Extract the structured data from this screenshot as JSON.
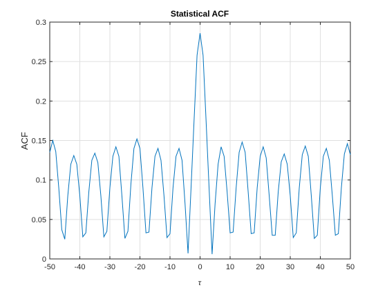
{
  "chart_data": {
    "type": "line",
    "title": "Statistical ACF",
    "xlabel": "τ",
    "ylabel": "ACF",
    "x": [
      -50,
      -49,
      -48,
      -47,
      -46,
      -45,
      -44,
      -43,
      -42,
      -41,
      -40,
      -39,
      -38,
      -37,
      -36,
      -35,
      -34,
      -33,
      -32,
      -31,
      -30,
      -29,
      -28,
      -27,
      -26,
      -25,
      -24,
      -23,
      -22,
      -21,
      -20,
      -19,
      -18,
      -17,
      -16,
      -15,
      -14,
      -13,
      -12,
      -11,
      -10,
      -9,
      -8,
      -7,
      -6,
      -5,
      -4,
      -3,
      -2,
      -1,
      0,
      1,
      2,
      3,
      4,
      5,
      6,
      7,
      8,
      9,
      10,
      11,
      12,
      13,
      14,
      15,
      16,
      17,
      18,
      19,
      20,
      21,
      22,
      23,
      24,
      25,
      26,
      27,
      28,
      29,
      30,
      31,
      32,
      33,
      34,
      35,
      36,
      37,
      38,
      39,
      40,
      41,
      42,
      43,
      44,
      45,
      46,
      47,
      48,
      49,
      50
    ],
    "series": [
      {
        "name": "ACF",
        "color": "#0072bd",
        "values": [
          0.135,
          0.15,
          0.136,
          0.09,
          0.037,
          0.025,
          0.08,
          0.12,
          0.131,
          0.12,
          0.08,
          0.028,
          0.033,
          0.085,
          0.125,
          0.134,
          0.122,
          0.08,
          0.028,
          0.035,
          0.09,
          0.13,
          0.142,
          0.13,
          0.08,
          0.026,
          0.035,
          0.095,
          0.14,
          0.152,
          0.14,
          0.09,
          0.033,
          0.034,
          0.09,
          0.13,
          0.14,
          0.125,
          0.08,
          0.027,
          0.032,
          0.09,
          0.13,
          0.14,
          0.125,
          0.07,
          0.007,
          0.09,
          0.175,
          0.258,
          0.286,
          0.258,
          0.175,
          0.09,
          0.006,
          0.07,
          0.12,
          0.142,
          0.13,
          0.085,
          0.033,
          0.034,
          0.09,
          0.135,
          0.148,
          0.135,
          0.085,
          0.032,
          0.033,
          0.09,
          0.13,
          0.142,
          0.128,
          0.08,
          0.03,
          0.03,
          0.085,
          0.123,
          0.133,
          0.12,
          0.08,
          0.027,
          0.033,
          0.09,
          0.132,
          0.143,
          0.13,
          0.08,
          0.026,
          0.03,
          0.09,
          0.13,
          0.14,
          0.125,
          0.08,
          0.03,
          0.032,
          0.09,
          0.133,
          0.146,
          0.132
        ]
      }
    ],
    "xlim": [
      -50,
      50
    ],
    "ylim": [
      0,
      0.3
    ],
    "xticks": [
      -50,
      -40,
      -30,
      -20,
      -10,
      0,
      10,
      20,
      30,
      40,
      50
    ],
    "yticks": [
      0,
      0.05,
      0.1,
      0.15,
      0.2,
      0.25,
      0.3
    ],
    "grid": true
  }
}
